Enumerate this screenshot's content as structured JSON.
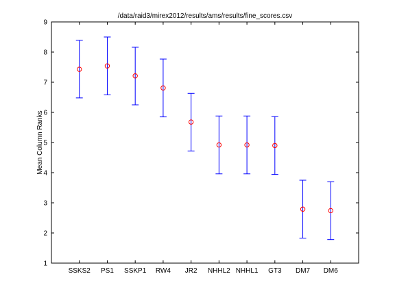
{
  "chart_data": {
    "type": "scatter",
    "title": "/data/raid3/mirex2012/results/ams/results/fine_scores.csv",
    "xlabel": "",
    "ylabel": "Mean Column Ranks",
    "categories": [
      "SSKS2",
      "PS1",
      "SSKP1",
      "RW4",
      "JR2",
      "NHHL2",
      "NHHL1",
      "GT3",
      "DM7",
      "DM6"
    ],
    "series": [
      {
        "mean": [
          7.43,
          7.54,
          7.21,
          6.81,
          5.68,
          4.92,
          4.92,
          4.9,
          2.79,
          2.74
        ],
        "lower": [
          6.48,
          6.58,
          6.25,
          5.85,
          4.72,
          3.96,
          3.96,
          3.94,
          1.83,
          1.78
        ],
        "upper": [
          8.39,
          8.5,
          8.16,
          7.77,
          6.63,
          5.88,
          5.88,
          5.86,
          3.75,
          3.7
        ]
      }
    ],
    "ylim": [
      1,
      9
    ],
    "yticks": [
      1,
      2,
      3,
      4,
      5,
      6,
      7,
      8,
      9
    ],
    "grid": false,
    "colors": {
      "errorbar": "#0000ff",
      "marker": "#ff0000",
      "axes": "#000000"
    }
  }
}
